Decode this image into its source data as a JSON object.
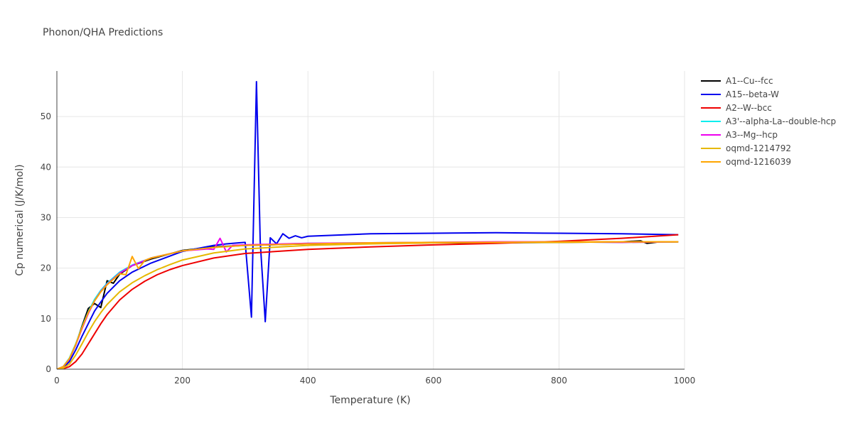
{
  "chart_data": {
    "type": "line",
    "title": "Phonon/QHA Predictions",
    "xlabel": "Temperature (K)",
    "ylabel": "Cp numerical (J/K/mol)",
    "xlim": [
      0,
      1000
    ],
    "ylim": [
      0,
      59
    ],
    "xticks": [
      0,
      200,
      400,
      600,
      800,
      1000
    ],
    "yticks": [
      0,
      10,
      20,
      30,
      40,
      50
    ],
    "grid": true,
    "legend_position": "top-right",
    "series": [
      {
        "name": "A1--Cu--fcc",
        "color": "#000000",
        "x": [
          0,
          10,
          20,
          30,
          40,
          50,
          60,
          70,
          80,
          90,
          100,
          120,
          150,
          200,
          250,
          300,
          400,
          500,
          600,
          700,
          800,
          900,
          930,
          940,
          960,
          990
        ],
        "y": [
          0,
          0.4,
          2.0,
          4.8,
          8.5,
          12.0,
          13.0,
          12.2,
          17.5,
          17.0,
          18.8,
          20.5,
          21.8,
          23.5,
          24.2,
          24.5,
          24.8,
          24.9,
          25.0,
          25.0,
          25.1,
          25.2,
          25.4,
          24.9,
          25.2,
          25.2
        ]
      },
      {
        "name": "A15--beta-W",
        "color": "#0000ee",
        "x": [
          0,
          10,
          20,
          30,
          40,
          50,
          60,
          70,
          80,
          100,
          120,
          150,
          200,
          250,
          270,
          290,
          300,
          310,
          318,
          324,
          332,
          340,
          350,
          360,
          370,
          380,
          390,
          400,
          500,
          600,
          700,
          800,
          900,
          990
        ],
        "y": [
          0,
          0.3,
          1.5,
          3.8,
          6.5,
          9.0,
          11.5,
          13.3,
          15.0,
          17.5,
          19.2,
          21.0,
          23.3,
          24.5,
          24.8,
          25.0,
          25.1,
          10.3,
          56.9,
          25.2,
          9.4,
          26.0,
          24.8,
          26.8,
          25.9,
          26.4,
          26.0,
          26.3,
          26.8,
          26.9,
          27.0,
          26.9,
          26.8,
          26.6
        ]
      },
      {
        "name": "A2--W--bcc",
        "color": "#ee0000",
        "x": [
          0,
          10,
          20,
          30,
          40,
          50,
          60,
          70,
          80,
          100,
          120,
          140,
          160,
          180,
          200,
          250,
          300,
          400,
          500,
          600,
          700,
          800,
          900,
          990
        ],
        "y": [
          0,
          0.1,
          0.5,
          1.5,
          3.0,
          5.0,
          7.0,
          9.0,
          10.8,
          13.7,
          15.8,
          17.4,
          18.7,
          19.7,
          20.5,
          22.0,
          22.9,
          23.7,
          24.2,
          24.6,
          24.9,
          25.3,
          25.9,
          26.6
        ]
      },
      {
        "name": "A3'--alpha-La--double-hcp",
        "color": "#00eeee",
        "x": [
          0,
          10,
          20,
          30,
          40,
          50,
          60,
          70,
          80,
          100,
          120,
          150,
          200,
          250,
          300,
          400,
          500,
          600,
          700,
          800,
          900,
          990
        ],
        "y": [
          0,
          0.5,
          2.2,
          5.0,
          8.3,
          11.3,
          13.8,
          15.6,
          17.0,
          19.2,
          20.6,
          22.0,
          23.4,
          24.1,
          24.5,
          24.9,
          25.0,
          25.1,
          25.1,
          25.2,
          25.1,
          25.2
        ]
      },
      {
        "name": "A3--Mg--hcp",
        "color": "#ee00ee",
        "x": [
          0,
          10,
          20,
          30,
          40,
          50,
          60,
          70,
          80,
          100,
          120,
          150,
          200,
          240,
          250,
          260,
          270,
          280,
          300,
          400,
          500,
          600,
          700,
          800,
          900,
          990
        ],
        "y": [
          0,
          0.5,
          2.0,
          4.8,
          8.0,
          11.0,
          13.5,
          15.4,
          16.8,
          19.0,
          20.5,
          22.0,
          23.4,
          23.8,
          23.7,
          25.9,
          23.2,
          24.5,
          24.6,
          24.9,
          25.0,
          25.1,
          25.2,
          25.2,
          25.1,
          25.2
        ]
      },
      {
        "name": "oqmd-1214792",
        "color": "#e6b800",
        "x": [
          0,
          10,
          20,
          30,
          40,
          50,
          60,
          70,
          80,
          100,
          120,
          140,
          160,
          180,
          200,
          250,
          300,
          400,
          500,
          600,
          700,
          800,
          900,
          990
        ],
        "y": [
          0,
          0.2,
          1.0,
          2.8,
          5.0,
          7.3,
          9.4,
          11.2,
          12.8,
          15.3,
          17.1,
          18.5,
          19.7,
          20.7,
          21.6,
          23.0,
          23.8,
          24.5,
          24.8,
          25.0,
          25.1,
          25.1,
          25.2,
          25.2
        ]
      },
      {
        "name": "oqmd-1216039",
        "color": "#ffa500",
        "x": [
          0,
          10,
          20,
          30,
          40,
          50,
          60,
          70,
          80,
          100,
          110,
          120,
          130,
          140,
          150,
          200,
          250,
          300,
          400,
          500,
          600,
          700,
          800,
          900,
          990
        ],
        "y": [
          0,
          0.5,
          2.1,
          4.9,
          8.2,
          11.2,
          13.5,
          15.3,
          16.7,
          18.9,
          18.7,
          22.3,
          19.9,
          21.5,
          22.0,
          23.4,
          24.1,
          24.5,
          24.8,
          25.0,
          25.1,
          25.1,
          25.2,
          25.2,
          25.2
        ]
      }
    ]
  }
}
